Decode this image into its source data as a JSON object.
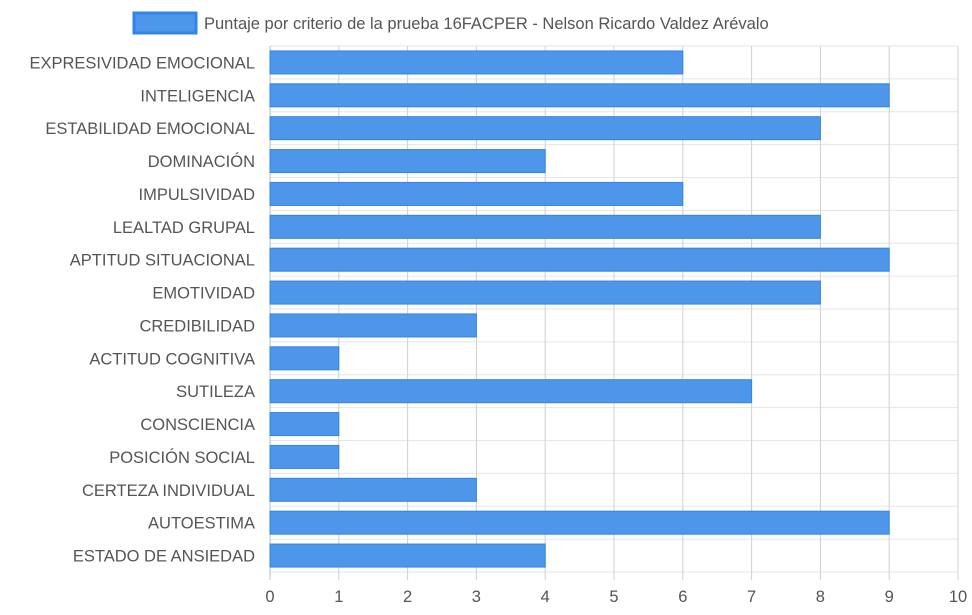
{
  "chart_data": {
    "type": "bar",
    "orientation": "horizontal",
    "categories": [
      "EXPRESIVIDAD EMOCIONAL",
      "INTELIGENCIA",
      "ESTABILIDAD EMOCIONAL",
      "DOMINACIÓN",
      "IMPULSIVIDAD",
      "LEALTAD GRUPAL",
      "APTITUD SITUACIONAL",
      "EMOTIVIDAD",
      "CREDIBILIDAD",
      "ACTITUD COGNITIVA",
      "SUTILEZA",
      "CONSCIENCIA",
      "POSICIÓN SOCIAL",
      "CERTEZA INDIVIDUAL",
      "AUTOESTIMA",
      "ESTADO DE ANSIEDAD"
    ],
    "series": [
      {
        "name": "Puntaje por criterio de la prueba 16FACPER - Nelson Ricardo Valdez Arévalo",
        "values": [
          6,
          9,
          8,
          4,
          6,
          8,
          9,
          8,
          3,
          1,
          7,
          1,
          1,
          3,
          9,
          4
        ],
        "color": "#4d96ea",
        "border_color": "#2f86e6"
      }
    ],
    "xlim": [
      0,
      10
    ],
    "x_ticks": [
      "0",
      "1",
      "2",
      "3",
      "4",
      "5",
      "6",
      "7",
      "8",
      "9",
      "10"
    ],
    "grid": true,
    "legend_position": "top"
  }
}
